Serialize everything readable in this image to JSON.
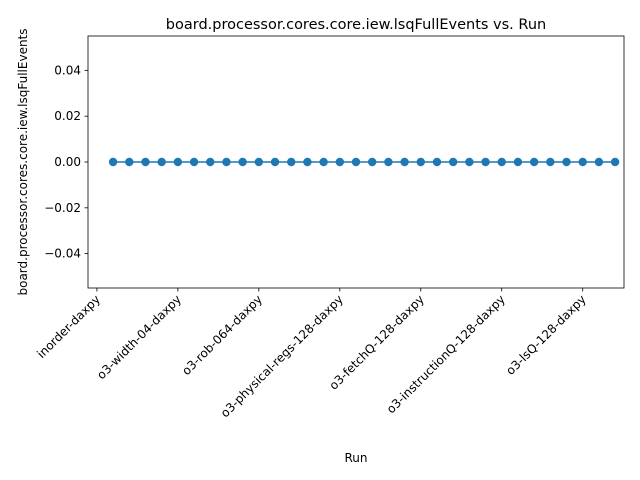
{
  "chart_data": {
    "type": "line",
    "title": "board.processor.cores.core.iew.lsqFullEvents vs. Run",
    "xlabel": "Run",
    "ylabel": "board.processor.cores.core.iew.lsqFullEvents",
    "x_tick_labels": [
      "inorder-daxpy",
      "o3-width-04-daxpy",
      "o3-rob-064-daxpy",
      "o3-physical-regs-128-daxpy",
      "o3-fetchQ-128-daxpy",
      "o3-instructionQ-128-daxpy",
      "o3-lsQ-128-daxpy"
    ],
    "x_tick_positions": [
      -1,
      4,
      9,
      14,
      19,
      24,
      29
    ],
    "x": [
      0,
      1,
      2,
      3,
      4,
      5,
      6,
      7,
      8,
      9,
      10,
      11,
      12,
      13,
      14,
      15,
      16,
      17,
      18,
      19,
      20,
      21,
      22,
      23,
      24,
      25,
      26,
      27,
      28,
      29,
      30,
      31
    ],
    "values": [
      0,
      0,
      0,
      0,
      0,
      0,
      0,
      0,
      0,
      0,
      0,
      0,
      0,
      0,
      0,
      0,
      0,
      0,
      0,
      0,
      0,
      0,
      0,
      0,
      0,
      0,
      0,
      0,
      0,
      0,
      0,
      0
    ],
    "xlim": [
      -1.55,
      31.55
    ],
    "ylim": [
      -0.055,
      0.055
    ],
    "y_ticks": [
      -0.04,
      -0.02,
      0.0,
      0.02,
      0.04
    ],
    "y_tick_labels": [
      "−0.04",
      "−0.02",
      "0.00",
      "0.02",
      "0.04"
    ],
    "grid": false,
    "color": "#1f77b4"
  }
}
